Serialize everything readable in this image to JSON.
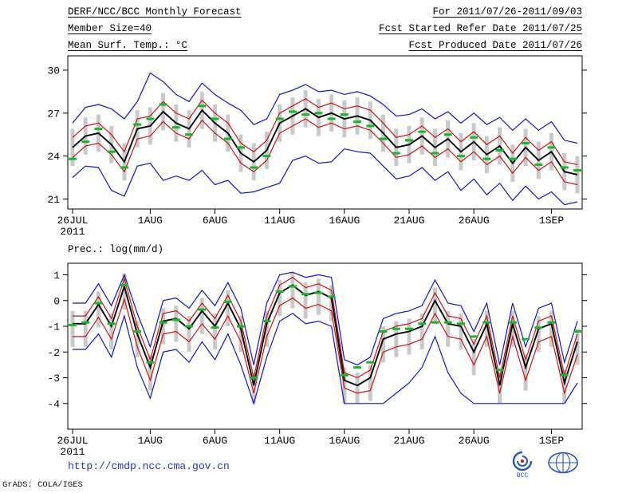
{
  "header": {
    "left": [
      "DERF/NCC/BCC Monthly Forecast",
      "Member Size=40"
    ],
    "right": [
      "For 2011/07/26-2011/09/03",
      "Fcst Started Refer Date 2011/07/25",
      "Fcst Produced Date 2011/07/26"
    ]
  },
  "footer": {
    "url": "http://cmdp.ncc.cma.gov.cn",
    "credit": "GrADS: COLA/IGES",
    "bcc_label": "BCC"
  },
  "colors": {
    "mean": "#000000",
    "std": "#cc1111",
    "extreme": "#1111cc",
    "obs": "#11bb22",
    "bar": "#c9c9c9",
    "url": "#2233bb",
    "logo": "#2255cc"
  },
  "chart_data": [
    {
      "type": "line",
      "title": "Mean Surf. Temp.: °C",
      "year_label": "2011",
      "n_days": 40,
      "ylim": [
        20.3,
        31.0
      ],
      "yticks": [
        30,
        27,
        24,
        21
      ],
      "xtick_days": [
        0,
        6,
        11,
        16,
        21,
        26,
        31,
        37
      ],
      "xtick_labels": [
        "26JUL",
        "1AUG",
        "6AUG",
        "11AUG",
        "16AUG",
        "21AUG",
        "26AUG",
        "1SEP"
      ],
      "series": {
        "max": [
          26.3,
          27.4,
          27.6,
          27.3,
          26.6,
          27.8,
          29.8,
          29.2,
          28.3,
          27.8,
          29.1,
          28.3,
          27.7,
          27.2,
          26.2,
          26.6,
          28.3,
          28.6,
          29.0,
          28.5,
          28.6,
          28.3,
          28.5,
          28.2,
          27.6,
          26.8,
          26.9,
          27.3,
          26.6,
          27.1,
          26.3,
          27.0,
          26.2,
          26.7,
          25.8,
          26.6,
          25.8,
          26.4,
          25.1,
          24.9
        ],
        "min": [
          22.5,
          23.3,
          23.2,
          21.6,
          21.2,
          23.3,
          23.5,
          22.3,
          22.6,
          22.3,
          23.0,
          22.0,
          22.3,
          21.4,
          21.5,
          21.8,
          22.1,
          23.7,
          24.0,
          23.5,
          23.6,
          24.5,
          24.3,
          24.2,
          23.3,
          22.4,
          22.6,
          23.2,
          22.3,
          22.9,
          21.6,
          22.4,
          21.3,
          22.1,
          20.9,
          21.9,
          21.0,
          21.5,
          20.6,
          20.8
        ],
        "plus_std": [
          25.3,
          26.1,
          26.3,
          25.5,
          24.3,
          26.6,
          26.8,
          27.8,
          27.0,
          26.6,
          27.9,
          27.0,
          26.3,
          24.9,
          24.3,
          25.1,
          27.0,
          27.5,
          28.0,
          27.4,
          27.7,
          27.3,
          27.5,
          27.2,
          26.3,
          25.3,
          25.5,
          26.1,
          25.3,
          25.9,
          25.0,
          25.7,
          24.8,
          25.4,
          24.2,
          25.3,
          24.4,
          25.0,
          23.6,
          23.4
        ],
        "minus_std": [
          23.9,
          24.7,
          24.9,
          24.1,
          22.9,
          25.2,
          25.4,
          26.4,
          25.6,
          25.2,
          26.5,
          25.6,
          24.9,
          23.5,
          22.9,
          23.7,
          25.6,
          26.1,
          26.6,
          26.0,
          26.3,
          25.9,
          26.1,
          25.8,
          24.9,
          23.9,
          24.1,
          24.7,
          23.9,
          24.5,
          23.6,
          24.3,
          23.4,
          24.0,
          22.8,
          23.9,
          23.0,
          23.6,
          22.2,
          22.0
        ],
        "mean": [
          24.6,
          25.4,
          25.6,
          24.8,
          23.6,
          25.9,
          26.1,
          27.1,
          26.3,
          25.9,
          27.2,
          26.3,
          25.6,
          24.2,
          23.6,
          24.4,
          26.3,
          26.8,
          27.3,
          26.7,
          27.0,
          26.6,
          26.8,
          26.5,
          25.6,
          24.6,
          24.8,
          25.4,
          24.6,
          25.2,
          24.3,
          25.0,
          24.1,
          24.7,
          23.5,
          24.6,
          23.7,
          24.3,
          22.9,
          22.7
        ]
      },
      "markers": {
        "name": "observation-dashes",
        "values": [
          23.8,
          25.0,
          25.9,
          24.3,
          23.2,
          26.2,
          26.6,
          27.6,
          26.0,
          25.5,
          27.5,
          26.6,
          25.2,
          24.6,
          23.2,
          24.0,
          26.6,
          27.1,
          26.9,
          27.0,
          26.6,
          26.9,
          26.4,
          26.1,
          25.2,
          24.2,
          25.1,
          25.7,
          24.2,
          25.5,
          24.0,
          25.3,
          23.8,
          24.4,
          23.8,
          24.9,
          23.4,
          24.6,
          23.2,
          23.0
        ]
      },
      "bars": {
        "low": [
          23.3,
          24.1,
          24.3,
          23.5,
          22.3,
          24.6,
          24.8,
          25.8,
          25.0,
          24.6,
          25.9,
          25.0,
          24.3,
          22.9,
          22.3,
          23.1,
          25.0,
          25.5,
          26.0,
          25.4,
          25.7,
          25.3,
          25.5,
          25.2,
          24.3,
          23.3,
          23.5,
          24.1,
          23.3,
          23.9,
          23.0,
          23.7,
          22.8,
          23.4,
          22.2,
          23.3,
          22.4,
          23.0,
          21.6,
          21.4
        ],
        "high": [
          25.9,
          26.7,
          26.9,
          26.1,
          24.9,
          27.2,
          27.4,
          28.4,
          27.6,
          27.2,
          28.5,
          27.6,
          26.9,
          25.5,
          24.9,
          25.7,
          27.6,
          28.1,
          28.6,
          28.0,
          28.3,
          27.9,
          28.1,
          27.8,
          26.9,
          25.9,
          26.1,
          26.7,
          25.9,
          26.5,
          25.6,
          26.3,
          25.4,
          26.0,
          24.8,
          25.9,
          25.0,
          25.6,
          24.2,
          24.0
        ]
      }
    },
    {
      "type": "line",
      "title": "Prec.: log(mm/d)",
      "year_label": "2011",
      "n_days": 40,
      "ylim": [
        -5.0,
        1.45
      ],
      "yticks": [
        1,
        0,
        -1,
        -2,
        -3,
        -4
      ],
      "xtick_days": [
        0,
        6,
        11,
        16,
        21,
        26,
        31,
        37
      ],
      "xtick_labels": [
        "26JUL",
        "1AUG",
        "6AUG",
        "11AUG",
        "16AUG",
        "21AUG",
        "26AUG",
        "1SEP"
      ],
      "series": {
        "max": [
          -0.1,
          -0.1,
          0.65,
          -0.2,
          1.0,
          -0.5,
          -1.8,
          0.0,
          0.1,
          -0.3,
          0.4,
          -0.2,
          0.7,
          -0.3,
          -2.5,
          -0.1,
          1.0,
          1.1,
          0.9,
          1.0,
          0.9,
          -2.3,
          -2.5,
          -2.2,
          -0.7,
          -0.5,
          -0.4,
          -0.2,
          0.8,
          -0.1,
          -0.2,
          -1.2,
          -0.1,
          -2.5,
          -0.1,
          -1.8,
          -0.3,
          -0.1,
          -2.4,
          -0.8
        ],
        "min": [
          -1.9,
          -1.9,
          -1.3,
          -2.2,
          -0.6,
          -2.6,
          -3.8,
          -2.0,
          -1.9,
          -2.4,
          -1.6,
          -2.3,
          -1.3,
          -2.5,
          -4.0,
          -2.2,
          -0.8,
          -0.5,
          -0.9,
          -0.8,
          -1.0,
          -4.0,
          -4.0,
          -4.0,
          -4.0,
          -3.6,
          -3.2,
          -2.6,
          -1.4,
          -2.8,
          -3.6,
          -4.0,
          -4.0,
          -4.0,
          -4.0,
          -4.0,
          -4.0,
          -4.0,
          -4.0,
          -3.2
        ],
        "plus_std": [
          -0.6,
          -0.6,
          0.15,
          -0.7,
          0.85,
          -1.0,
          -2.3,
          -0.5,
          -0.4,
          -0.8,
          -0.1,
          -0.7,
          0.2,
          -0.8,
          -3.0,
          -0.6,
          0.6,
          0.9,
          0.5,
          0.65,
          0.4,
          -2.8,
          -3.0,
          -2.7,
          -1.2,
          -1.0,
          -0.9,
          -0.7,
          0.3,
          -0.6,
          -0.7,
          -1.7,
          -0.6,
          -3.0,
          -0.6,
          -2.3,
          -0.8,
          -0.6,
          -2.9,
          -1.3
        ],
        "minus_std": [
          -1.4,
          -1.4,
          -0.65,
          -1.5,
          0.05,
          -1.8,
          -3.1,
          -1.3,
          -1.2,
          -1.6,
          -0.9,
          -1.5,
          -0.6,
          -1.6,
          -3.6,
          -1.4,
          -0.2,
          0.1,
          -0.3,
          -0.15,
          -0.4,
          -3.4,
          -3.6,
          -3.5,
          -2.0,
          -1.8,
          -1.7,
          -1.5,
          -0.5,
          -1.4,
          -1.5,
          -2.5,
          -1.4,
          -3.6,
          -1.4,
          -3.1,
          -1.6,
          -1.4,
          -3.6,
          -2.1
        ],
        "mean": [
          -0.9,
          -0.9,
          -0.15,
          -1.0,
          0.55,
          -1.3,
          -2.6,
          -0.8,
          -0.7,
          -1.1,
          -0.4,
          -1.0,
          -0.1,
          -1.1,
          -3.3,
          -0.9,
          0.3,
          0.6,
          0.2,
          0.35,
          0.1,
          -3.1,
          -3.3,
          -3.0,
          -1.5,
          -1.3,
          -1.2,
          -1.0,
          0.0,
          -0.9,
          -1.0,
          -2.0,
          -0.9,
          -3.3,
          -0.9,
          -2.6,
          -1.1,
          -0.9,
          -3.2,
          -1.6
        ]
      },
      "markers": {
        "name": "observation-dashes",
        "values": [
          -0.95,
          -0.85,
          -0.1,
          -0.9,
          0.6,
          -1.2,
          -2.4,
          -0.85,
          -0.75,
          -1.0,
          -0.35,
          -1.05,
          -0.05,
          -1.0,
          -3.0,
          -0.8,
          0.35,
          0.55,
          0.25,
          0.3,
          0.15,
          -2.9,
          -2.6,
          -2.4,
          -1.2,
          -1.1,
          -1.1,
          -0.9,
          -0.85,
          -0.85,
          -0.9,
          -1.4,
          -0.85,
          -2.7,
          -0.85,
          -1.5,
          -1.05,
          -0.85,
          -2.9,
          -1.2
        ]
      },
      "bars": {
        "low": [
          -1.8,
          -1.8,
          -1.05,
          -1.9,
          -0.35,
          -2.2,
          -3.5,
          -1.7,
          -1.6,
          -2.0,
          -1.3,
          -1.9,
          -1.0,
          -2.0,
          -4.0,
          -1.8,
          -0.6,
          -0.3,
          -0.7,
          -0.55,
          -0.8,
          -4.0,
          -4.0,
          -3.9,
          -2.4,
          -2.2,
          -2.1,
          -1.9,
          -0.9,
          -1.8,
          -1.9,
          -2.9,
          -1.8,
          -4.0,
          -1.8,
          -3.5,
          -2.0,
          -1.8,
          -4.0,
          -2.5
        ],
        "high": [
          -0.4,
          -0.4,
          0.35,
          -0.5,
          1.05,
          -0.8,
          -2.1,
          -0.3,
          -0.2,
          -0.6,
          0.1,
          -0.5,
          0.4,
          -0.6,
          -2.8,
          -0.4,
          0.8,
          1.1,
          0.7,
          0.85,
          0.6,
          -2.6,
          -2.8,
          -2.5,
          -1.0,
          -0.8,
          -0.7,
          -0.5,
          0.5,
          -0.4,
          -0.5,
          -1.5,
          -0.4,
          -2.8,
          -0.4,
          -2.1,
          -0.6,
          -0.4,
          -2.7,
          -1.1
        ]
      }
    }
  ]
}
